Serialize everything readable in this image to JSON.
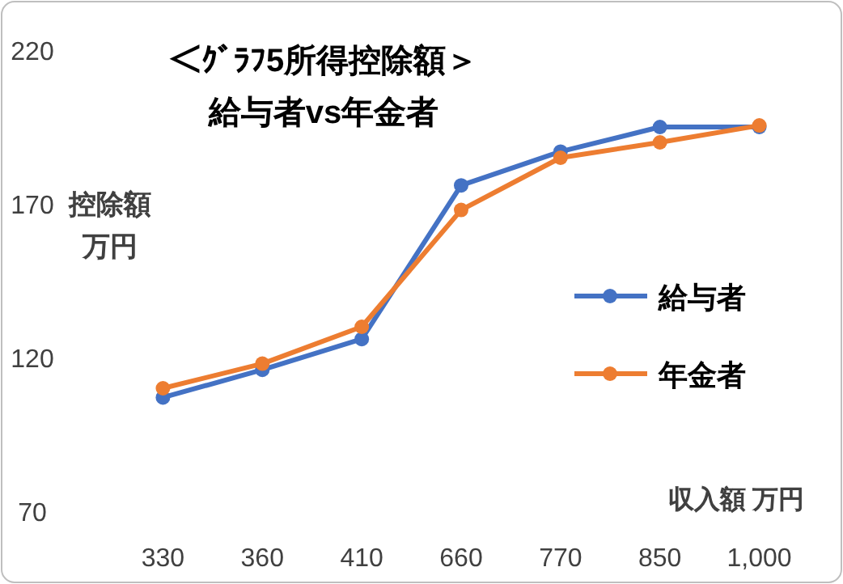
{
  "chart_data": {
    "type": "line",
    "title": "＜ｸﾞﾗﾌ5所得控除額＞",
    "subtitle": "給与者vs年金者",
    "ylabel": "控除額万円",
    "xlabel": "収入額  万円",
    "categories": [
      "330",
      "360",
      "410",
      "660",
      "770",
      "850",
      "1,000"
    ],
    "series": [
      {
        "name": "給与者",
        "color": "#4472c4",
        "values": [
          107,
          116,
          126,
          176,
          187,
          195,
          195
        ]
      },
      {
        "name": "年金者",
        "color": "#ed7d31",
        "values": [
          110,
          118,
          130,
          168,
          185,
          190,
          195.5
        ]
      }
    ],
    "ylim": [
      70,
      220
    ],
    "yticks": [
      70,
      120,
      170,
      220
    ],
    "grid": false,
    "legend": "right",
    "marker": "circle",
    "line_style": "solid"
  }
}
